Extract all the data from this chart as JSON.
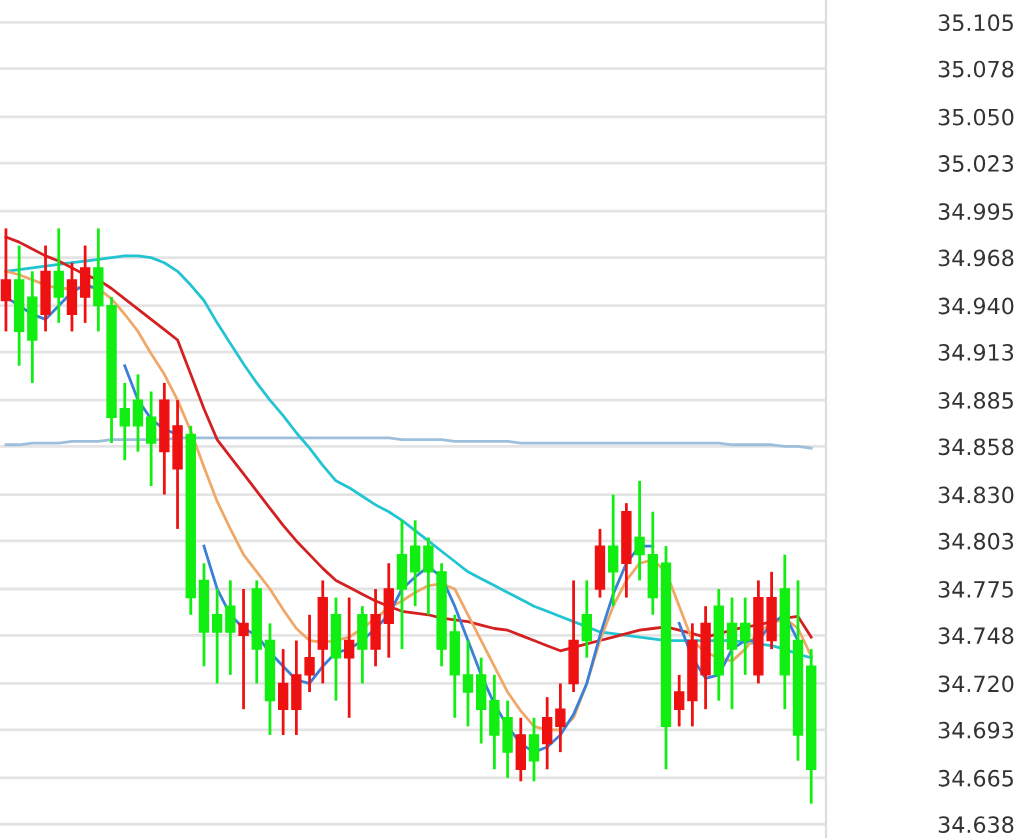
{
  "chart_data": {
    "type": "candlestick",
    "categories": [
      null,
      null,
      null,
      null,
      null,
      null,
      null,
      null,
      null,
      null,
      null,
      null,
      null,
      null,
      null,
      null,
      null,
      null,
      null,
      null,
      null,
      null,
      null,
      null,
      null,
      null,
      null,
      null,
      null,
      null,
      null,
      null,
      null,
      null,
      null,
      null,
      null,
      null,
      null,
      null,
      null,
      null,
      null,
      null,
      null,
      null,
      null,
      null,
      null,
      null,
      null,
      null,
      null,
      null,
      null,
      null,
      null,
      null,
      null,
      null,
      null,
      null
    ],
    "ohlc": [
      [
        34.943,
        34.985,
        34.925,
        34.955
      ],
      [
        34.955,
        34.975,
        34.905,
        34.925
      ],
      [
        34.945,
        34.96,
        34.895,
        34.92
      ],
      [
        34.935,
        34.975,
        34.925,
        34.96
      ],
      [
        34.96,
        34.985,
        34.93,
        34.945
      ],
      [
        34.935,
        34.965,
        34.925,
        34.955
      ],
      [
        34.945,
        34.975,
        34.93,
        34.962
      ],
      [
        34.962,
        34.985,
        34.925,
        34.94
      ],
      [
        34.94,
        34.945,
        34.86,
        34.875
      ],
      [
        34.88,
        34.895,
        34.85,
        34.87
      ],
      [
        34.885,
        34.9,
        34.855,
        34.87
      ],
      [
        34.875,
        34.89,
        34.835,
        34.86
      ],
      [
        34.855,
        34.895,
        34.83,
        34.885
      ],
      [
        34.845,
        34.885,
        34.81,
        34.87
      ],
      [
        34.865,
        34.87,
        34.76,
        34.77
      ],
      [
        34.78,
        34.79,
        34.73,
        34.75
      ],
      [
        34.76,
        34.775,
        34.72,
        34.75
      ],
      [
        34.765,
        34.78,
        34.725,
        34.75
      ],
      [
        34.748,
        34.775,
        34.705,
        34.755
      ],
      [
        34.775,
        34.78,
        34.72,
        34.74
      ],
      [
        34.745,
        34.755,
        34.69,
        34.71
      ],
      [
        34.705,
        34.74,
        34.69,
        34.72
      ],
      [
        34.705,
        34.745,
        34.69,
        34.725
      ],
      [
        34.725,
        34.76,
        34.715,
        34.735
      ],
      [
        34.74,
        34.78,
        34.72,
        34.77
      ],
      [
        34.76,
        34.77,
        34.71,
        34.735
      ],
      [
        34.735,
        34.77,
        34.7,
        34.745
      ],
      [
        34.76,
        34.765,
        34.72,
        34.74
      ],
      [
        34.74,
        34.775,
        34.73,
        34.76
      ],
      [
        34.755,
        34.79,
        34.735,
        34.775
      ],
      [
        34.795,
        34.815,
        34.74,
        34.775
      ],
      [
        34.8,
        34.815,
        34.765,
        34.785
      ],
      [
        34.8,
        34.805,
        34.76,
        34.785
      ],
      [
        34.785,
        34.79,
        34.73,
        34.74
      ],
      [
        34.75,
        34.76,
        34.7,
        34.725
      ],
      [
        34.725,
        34.745,
        34.695,
        34.715
      ],
      [
        34.725,
        34.735,
        34.685,
        34.705
      ],
      [
        34.71,
        34.725,
        34.67,
        34.69
      ],
      [
        34.7,
        34.71,
        34.665,
        34.68
      ],
      [
        34.67,
        34.7,
        34.663,
        34.69
      ],
      [
        34.69,
        34.7,
        34.663,
        34.675
      ],
      [
        34.685,
        34.712,
        34.67,
        34.7
      ],
      [
        34.695,
        34.72,
        34.68,
        34.705
      ],
      [
        34.72,
        34.78,
        34.715,
        34.745
      ],
      [
        34.76,
        34.78,
        34.735,
        34.745
      ],
      [
        34.775,
        34.81,
        34.77,
        34.8
      ],
      [
        34.8,
        34.83,
        34.765,
        34.785
      ],
      [
        34.79,
        34.825,
        34.77,
        34.82
      ],
      [
        34.805,
        34.838,
        34.78,
        34.795
      ],
      [
        34.795,
        34.82,
        34.76,
        34.77
      ],
      [
        34.79,
        34.8,
        34.67,
        34.695
      ],
      [
        34.705,
        34.725,
        34.695,
        34.715
      ],
      [
        34.71,
        34.755,
        34.695,
        34.745
      ],
      [
        34.725,
        34.765,
        34.705,
        34.755
      ],
      [
        34.765,
        34.775,
        34.71,
        34.725
      ],
      [
        34.755,
        34.77,
        34.705,
        34.74
      ],
      [
        34.755,
        34.77,
        34.725,
        34.745
      ],
      [
        34.725,
        34.78,
        34.72,
        34.77
      ],
      [
        34.745,
        34.785,
        34.74,
        34.77
      ],
      [
        34.775,
        34.795,
        34.705,
        34.725
      ],
      [
        34.745,
        34.78,
        34.675,
        34.69
      ],
      [
        34.73,
        34.74,
        34.65,
        34.67
      ]
    ],
    "colors": [
      "#ee1111",
      "#11ee11",
      "#11ee11",
      "#ee1111",
      "#11ee11",
      "#ee1111",
      "#ee1111",
      "#11ee11",
      "#11ee11",
      "#11ee11",
      "#11ee11",
      "#11ee11",
      "#ee1111",
      "#ee1111",
      "#11ee11",
      "#11ee11",
      "#11ee11",
      "#11ee11",
      "#ee1111",
      "#11ee11",
      "#11ee11",
      "#ee1111",
      "#ee1111",
      "#ee1111",
      "#ee1111",
      "#11ee11",
      "#ee1111",
      "#11ee11",
      "#ee1111",
      "#ee1111",
      "#11ee11",
      "#11ee11",
      "#11ee11",
      "#11ee11",
      "#11ee11",
      "#11ee11",
      "#11ee11",
      "#11ee11",
      "#11ee11",
      "#ee1111",
      "#11ee11",
      "#ee1111",
      "#ee1111",
      "#ee1111",
      "#11ee11",
      "#ee1111",
      "#11ee11",
      "#ee1111",
      "#11ee11",
      "#11ee11",
      "#11ee11",
      "#ee1111",
      "#ee1111",
      "#ee1111",
      "#11ee11",
      "#11ee11",
      "#11ee11",
      "#ee1111",
      "#ee1111",
      "#11ee11",
      "#11ee11",
      "#11ee11"
    ],
    "series": [
      {
        "type": "line",
        "color": "#9dbfdc",
        "values": [
          34.859,
          34.859,
          34.86,
          34.86,
          34.86,
          34.861,
          34.861,
          34.861,
          34.862,
          34.862,
          34.862,
          34.862,
          34.862,
          34.863,
          34.863,
          34.863,
          34.863,
          34.863,
          34.863,
          34.863,
          34.863,
          34.863,
          34.863,
          34.863,
          34.863,
          34.863,
          34.863,
          34.863,
          34.863,
          34.863,
          34.862,
          34.862,
          34.862,
          34.862,
          34.861,
          34.861,
          34.861,
          34.861,
          34.861,
          34.86,
          34.86,
          34.86,
          34.86,
          34.86,
          34.86,
          34.86,
          34.86,
          34.86,
          34.86,
          34.86,
          34.86,
          34.86,
          34.86,
          34.86,
          34.86,
          34.859,
          34.859,
          34.859,
          34.859,
          34.858,
          34.858,
          34.857
        ]
      },
      {
        "type": "line",
        "color": "#22c4d4",
        "values": [
          34.96,
          34.961,
          34.962,
          34.963,
          34.964,
          34.965,
          34.966,
          34.967,
          34.968,
          34.969,
          34.969,
          34.968,
          34.965,
          34.96,
          34.952,
          34.943,
          34.93,
          34.918,
          34.906,
          34.895,
          34.885,
          34.876,
          34.866,
          34.857,
          34.847,
          34.838,
          34.834,
          34.829,
          34.824,
          34.82,
          34.815,
          34.809,
          34.803,
          34.797,
          34.791,
          34.785,
          34.781,
          34.777,
          34.773,
          34.769,
          34.765,
          34.762,
          34.759,
          34.756,
          34.753,
          34.75,
          34.749,
          34.748,
          34.747,
          34.746,
          34.745,
          34.745,
          34.745,
          34.745,
          34.745,
          34.745,
          34.744,
          34.743,
          34.742,
          34.74,
          34.737,
          34.735
        ]
      },
      {
        "type": "line",
        "color": "#d42020",
        "values": [
          34.98,
          34.977,
          34.973,
          34.969,
          34.966,
          34.962,
          34.958,
          34.955,
          34.95,
          34.944,
          34.938,
          34.932,
          34.926,
          34.92,
          34.9,
          34.88,
          34.862,
          34.852,
          34.842,
          34.832,
          34.822,
          34.812,
          34.803,
          34.795,
          34.787,
          34.78,
          34.776,
          34.772,
          34.768,
          34.765,
          34.762,
          34.761,
          34.76,
          34.758,
          34.757,
          34.756,
          34.754,
          34.752,
          34.751,
          34.748,
          34.745,
          34.742,
          34.739,
          34.741,
          34.743,
          34.745,
          34.747,
          34.749,
          34.751,
          34.752,
          34.753,
          34.751,
          34.749,
          34.747,
          34.749,
          34.751,
          34.753,
          34.754,
          34.756,
          34.758,
          34.759,
          34.747
        ]
      },
      {
        "type": "line",
        "color": "#f0a868",
        "values": [
          34.96,
          34.958,
          34.955,
          34.952,
          34.95,
          34.95,
          34.951,
          34.95,
          34.944,
          34.935,
          34.925,
          34.912,
          34.9,
          34.885,
          34.867,
          34.846,
          34.826,
          34.81,
          34.795,
          34.785,
          34.775,
          34.763,
          34.752,
          34.745,
          34.744,
          34.745,
          34.747,
          34.752,
          34.758,
          34.764,
          34.768,
          34.773,
          34.777,
          34.778,
          34.775,
          34.76,
          34.745,
          34.73,
          34.715,
          34.704,
          34.695,
          34.693,
          34.693,
          34.7,
          34.72,
          34.745,
          34.765,
          34.78,
          34.79,
          34.792,
          34.785,
          34.765,
          34.745,
          34.738,
          34.735,
          34.733,
          34.74,
          34.75,
          34.755,
          34.758,
          34.752,
          34.736
        ]
      },
      {
        "type": "line",
        "color": "#3a7fd8",
        "values": [
          34.945,
          34.94,
          34.935,
          34.932,
          34.94,
          34.948,
          34.952,
          34.95,
          null,
          34.905,
          34.885,
          34.874,
          34.868,
          34.865,
          null,
          34.8,
          34.775,
          34.76,
          34.752,
          34.748,
          34.738,
          34.73,
          34.722,
          34.72,
          34.73,
          34.738,
          34.74,
          34.745,
          34.752,
          34.76,
          34.775,
          34.782,
          34.788,
          34.782,
          34.765,
          34.745,
          34.725,
          34.708,
          34.695,
          34.685,
          34.68,
          34.683,
          34.69,
          34.702,
          34.72,
          34.748,
          34.772,
          34.79,
          34.8,
          34.8,
          null,
          34.755,
          34.735,
          34.723,
          34.725,
          34.74,
          34.745,
          34.745,
          34.755,
          34.76,
          34.745,
          null
        ]
      }
    ],
    "ylim": [
      34.63,
      35.118
    ],
    "yticks": [
      {
        "value": 34.638,
        "label": "34.638"
      },
      {
        "value": 34.665,
        "label": "34.665"
      },
      {
        "value": 34.693,
        "label": "34.693"
      },
      {
        "value": 34.72,
        "label": "34.720"
      },
      {
        "value": 34.748,
        "label": "34.748"
      },
      {
        "value": 34.775,
        "label": "34.775"
      },
      {
        "value": 34.803,
        "label": "34.803"
      },
      {
        "value": 34.83,
        "label": "34.830"
      },
      {
        "value": 34.858,
        "label": "34.858"
      },
      {
        "value": 34.885,
        "label": "34.885"
      },
      {
        "value": 34.913,
        "label": "34.913"
      },
      {
        "value": 34.94,
        "label": "34.940"
      },
      {
        "value": 34.968,
        "label": "34.968"
      },
      {
        "value": 34.995,
        "label": "34.995"
      },
      {
        "value": 35.023,
        "label": "35.023"
      },
      {
        "value": 35.05,
        "label": "35.050"
      },
      {
        "value": 35.078,
        "label": "35.078"
      },
      {
        "value": 35.105,
        "label": "35.105"
      }
    ],
    "grid": "y",
    "tick_labels": "y"
  }
}
